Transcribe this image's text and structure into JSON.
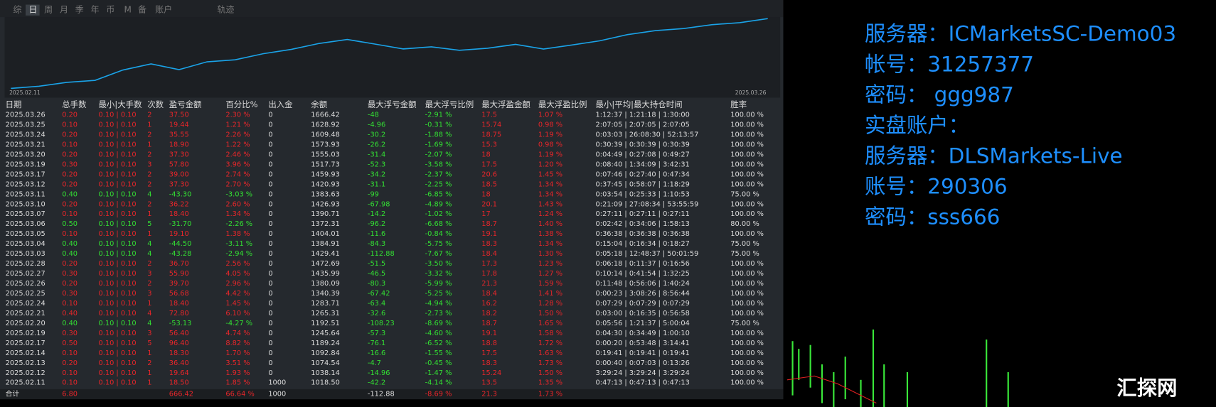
{
  "tabs": [
    "综",
    "日",
    "周",
    "月",
    "季",
    "年",
    "币",
    "M",
    "备",
    "账户",
    "轨迹"
  ],
  "curve": {
    "start_label": "2025.02.11",
    "end_label": "2025.03.26"
  },
  "table": {
    "columns": [
      "日期",
      "总手数",
      "最小|大手数",
      "次数",
      "盈亏金额",
      "百分比%",
      "出入金",
      "余额",
      "最大浮亏金额",
      "最大浮亏比例",
      "最大浮盈金额",
      "最大浮盈比例",
      "最小|平均|最大持仓时间",
      "胜率"
    ],
    "rows": [
      [
        "2025.03.26",
        "0.20",
        "0.10 | 0.10",
        "2",
        "37.50",
        "2.30 %",
        "0",
        "1666.42",
        "-48",
        "-2.91 %",
        "17.5",
        "1.07 %",
        "1:12:37 | 1:21:18 | 1:30:00",
        "100.00 %"
      ],
      [
        "2025.03.25",
        "0.10",
        "0.10 | 0.10",
        "1",
        "19.44",
        "1.21 %",
        "0",
        "1628.92",
        "-4.96",
        "-0.31 %",
        "15.74",
        "0.98 %",
        "2:07:05 | 2:07:05 | 2:07:05",
        "100.00 %"
      ],
      [
        "2025.03.24",
        "0.20",
        "0.10 | 0.10",
        "2",
        "35.55",
        "2.26 %",
        "0",
        "1609.48",
        "-30.2",
        "-1.88 %",
        "18.75",
        "1.19 %",
        "0:03:03 | 26:08:30 | 52:13:57",
        "100.00 %"
      ],
      [
        "2025.03.21",
        "0.10",
        "0.10 | 0.10",
        "1",
        "18.90",
        "1.22 %",
        "0",
        "1573.93",
        "-26.2",
        "-1.69 %",
        "15.3",
        "0.98 %",
        "0:30:39 | 0:30:39 | 0:30:39",
        "100.00 %"
      ],
      [
        "2025.03.20",
        "0.20",
        "0.10 | 0.10",
        "2",
        "37.30",
        "2.46 %",
        "0",
        "1555.03",
        "-31.4",
        "-2.07 %",
        "18",
        "1.19 %",
        "0:04:49 | 0:27:08 | 0:49:27",
        "100.00 %"
      ],
      [
        "2025.03.19",
        "0.30",
        "0.10 | 0.10",
        "3",
        "57.80",
        "3.96 %",
        "0",
        "1517.73",
        "-52.3",
        "-3.58 %",
        "17.5",
        "1.20 %",
        "0:08:40 | 1:34:09 | 3:42:31",
        "100.00 %"
      ],
      [
        "2025.03.17",
        "0.20",
        "0.10 | 0.10",
        "2",
        "39.00",
        "2.74 %",
        "0",
        "1459.93",
        "-34.2",
        "-2.37 %",
        "20.6",
        "1.45 %",
        "0:07:46 | 0:27:40 | 0:47:34",
        "100.00 %"
      ],
      [
        "2025.03.12",
        "0.20",
        "0.10 | 0.10",
        "2",
        "37.30",
        "2.70 %",
        "0",
        "1420.93",
        "-31.1",
        "-2.25 %",
        "18.5",
        "1.34 %",
        "0:37:45 | 0:58:07 | 1:18:29",
        "100.00 %"
      ],
      [
        "2025.03.11",
        "0.40",
        "0.10 | 0.10",
        "4",
        "-43.30",
        "-3.03 %",
        "0",
        "1383.63",
        "-99",
        "-6.85 %",
        "18",
        "1.34 %",
        "0:03:54 | 0:25:33 | 1:10:53",
        "75.00 %"
      ],
      [
        "2025.03.10",
        "0.20",
        "0.10 | 0.10",
        "2",
        "36.22",
        "2.60 %",
        "0",
        "1426.93",
        "-67.98",
        "-4.89 %",
        "20.1",
        "1.43 %",
        "0:21:09 | 27:08:34 | 53:55:59",
        "100.00 %"
      ],
      [
        "2025.03.07",
        "0.10",
        "0.10 | 0.10",
        "1",
        "18.40",
        "1.34 %",
        "0",
        "1390.71",
        "-14.2",
        "-1.02 %",
        "17",
        "1.24 %",
        "0:27:11 | 0:27:11 | 0:27:11",
        "100.00 %"
      ],
      [
        "2025.03.06",
        "0.50",
        "0.10 | 0.10",
        "5",
        "-31.70",
        "-2.26 %",
        "0",
        "1372.31",
        "-96.2",
        "-6.68 %",
        "18.7",
        "1.40 %",
        "0:02:42 | 0:34:06 | 1:58:13",
        "80.00 %"
      ],
      [
        "2025.03.05",
        "0.10",
        "0.10 | 0.10",
        "1",
        "19.10",
        "1.38 %",
        "0",
        "1404.01",
        "-11.6",
        "-0.84 %",
        "19.1",
        "1.38 %",
        "0:36:38 | 0:36:38 | 0:36:38",
        "100.00 %"
      ],
      [
        "2025.03.04",
        "0.40",
        "0.10 | 0.10",
        "4",
        "-44.50",
        "-3.11 %",
        "0",
        "1384.91",
        "-84.3",
        "-5.75 %",
        "18.3",
        "1.34 %",
        "0:15:04 | 0:16:34 | 0:18:27",
        "75.00 %"
      ],
      [
        "2025.03.03",
        "0.40",
        "0.10 | 0.10",
        "4",
        "-43.28",
        "-2.94 %",
        "0",
        "1429.41",
        "-112.88",
        "-7.67 %",
        "18.4",
        "1.30 %",
        "0:05:18 | 12:48:37 | 50:01:59",
        "75.00 %"
      ],
      [
        "2025.02.28",
        "0.20",
        "0.10 | 0.10",
        "2",
        "36.70",
        "2.56 %",
        "0",
        "1472.69",
        "-51.5",
        "-3.50 %",
        "17.3",
        "1.23 %",
        "0:06:18 | 0:11:37 | 0:16:56",
        "100.00 %"
      ],
      [
        "2025.02.27",
        "0.30",
        "0.10 | 0.10",
        "3",
        "55.90",
        "4.05 %",
        "0",
        "1435.99",
        "-46.5",
        "-3.32 %",
        "17.8",
        "1.27 %",
        "0:10:14 | 0:41:54 | 1:32:25",
        "100.00 %"
      ],
      [
        "2025.02.26",
        "0.20",
        "0.10 | 0.10",
        "2",
        "39.70",
        "2.96 %",
        "0",
        "1380.09",
        "-80.3",
        "-5.99 %",
        "21.3",
        "1.59 %",
        "0:11:48 | 0:56:06 | 1:40:24",
        "100.00 %"
      ],
      [
        "2025.02.25",
        "0.30",
        "0.10 | 0.10",
        "3",
        "56.68",
        "4.42 %",
        "0",
        "1340.39",
        "-67.42",
        "-5.25 %",
        "18.4",
        "1.41 %",
        "0:00:23 | 3:08:26 | 8:56:44",
        "100.00 %"
      ],
      [
        "2025.02.24",
        "0.10",
        "0.10 | 0.10",
        "1",
        "18.40",
        "1.45 %",
        "0",
        "1283.71",
        "-63.4",
        "-4.94 %",
        "16.2",
        "1.28 %",
        "0:07:29 | 0:07:29 | 0:07:29",
        "100.00 %"
      ],
      [
        "2025.02.21",
        "0.40",
        "0.10 | 0.10",
        "4",
        "72.80",
        "6.10 %",
        "0",
        "1265.31",
        "-32.6",
        "-2.73 %",
        "18.2",
        "1.50 %",
        "0:03:00 | 0:16:35 | 0:56:58",
        "100.00 %"
      ],
      [
        "2025.02.20",
        "0.40",
        "0.10 | 0.10",
        "4",
        "-53.13",
        "-4.27 %",
        "0",
        "1192.51",
        "-108.23",
        "-8.69 %",
        "18.7",
        "1.65 %",
        "0:05:56 | 1:21:37 | 5:00:04",
        "75.00 %"
      ],
      [
        "2025.02.19",
        "0.30",
        "0.10 | 0.10",
        "3",
        "56.40",
        "4.74 %",
        "0",
        "1245.64",
        "-57.3",
        "-4.60 %",
        "19.1",
        "1.58 %",
        "0:04:30 | 0:34:49 | 1:00:10",
        "100.00 %"
      ],
      [
        "2025.02.17",
        "0.50",
        "0.10 | 0.10",
        "5",
        "96.40",
        "8.82 %",
        "0",
        "1189.24",
        "-76.1",
        "-6.52 %",
        "18.8",
        "1.72 %",
        "0:00:20 | 0:53:48 | 3:14:41",
        "100.00 %"
      ],
      [
        "2025.02.14",
        "0.10",
        "0.10 | 0.10",
        "1",
        "18.30",
        "1.70 %",
        "0",
        "1092.84",
        "-16.6",
        "-1.55 %",
        "17.5",
        "1.63 %",
        "0:19:41 | 0:19:41 | 0:19:41",
        "100.00 %"
      ],
      [
        "2025.02.13",
        "0.20",
        "0.10 | 0.10",
        "2",
        "36.40",
        "3.51 %",
        "0",
        "1074.54",
        "-4.7",
        "-0.45 %",
        "18.3",
        "1.73 %",
        "0:00:40 | 0:07:03 | 0:13:26",
        "100.00 %"
      ],
      [
        "2025.02.12",
        "0.10",
        "0.10 | 0.10",
        "1",
        "19.64",
        "1.93 %",
        "0",
        "1038.14",
        "-14.96",
        "-1.47 %",
        "15.24",
        "1.50 %",
        "3:29:24 | 3:29:24 | 3:29:24",
        "100.00 %"
      ],
      [
        "2025.02.11",
        "0.10",
        "0.10 | 0.10",
        "1",
        "18.50",
        "1.85 %",
        "1000",
        "1018.50",
        "-42.2",
        "-4.14 %",
        "13.5",
        "1.35 %",
        "0:47:13 | 0:47:13 | 0:47:13",
        "100.00 %"
      ]
    ],
    "total": [
      "合计",
      "6.80",
      null,
      null,
      "666.42",
      "66.64 %",
      "1000",
      null,
      "-112.88",
      "-8.69 %",
      "21.3",
      "1.73 %",
      null,
      null
    ]
  },
  "info": [
    "服务器：ICMarketsSC-Demo03",
    "帐号：31257377",
    "密码： ggg987",
    "实盘账户：",
    "服务器：DLSMarkets-Live",
    "账号：290306",
    "密码：sss666"
  ],
  "watermark": "汇探网"
}
